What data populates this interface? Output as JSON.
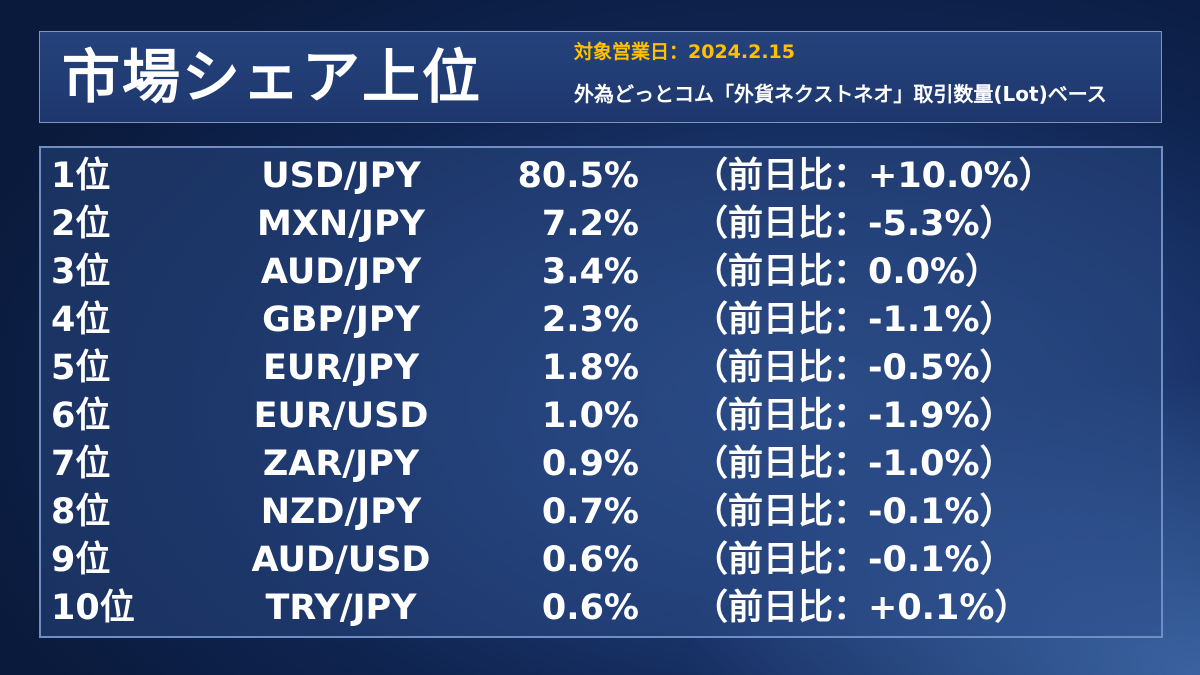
{
  "header": {
    "title": "市場シェア上位",
    "date_line": "対象営業日：2024.2.15",
    "basis_line": "外為どっとコム「外貨ネクストネオ」取引数量(Lot)ベース"
  },
  "ranking": [
    {
      "rank": "1位",
      "pair": "USD/JPY",
      "share": "80.5%",
      "change": "（前日比：+10.0%）"
    },
    {
      "rank": "2位",
      "pair": "MXN/JPY",
      "share": "7.2%",
      "change": "（前日比：-5.3%）"
    },
    {
      "rank": "3位",
      "pair": "AUD/JPY",
      "share": "3.4%",
      "change": "（前日比：0.0%）"
    },
    {
      "rank": "4位",
      "pair": "GBP/JPY",
      "share": "2.3%",
      "change": "（前日比：-1.1%）"
    },
    {
      "rank": "5位",
      "pair": "EUR/JPY",
      "share": "1.8%",
      "change": "（前日比：-0.5%）"
    },
    {
      "rank": "6位",
      "pair": "EUR/USD",
      "share": "1.0%",
      "change": "（前日比：-1.9%）"
    },
    {
      "rank": "7位",
      "pair": "ZAR/JPY",
      "share": "0.9%",
      "change": "（前日比：-1.0%）"
    },
    {
      "rank": "8位",
      "pair": "NZD/JPY",
      "share": "0.7%",
      "change": "（前日比：-0.1%）"
    },
    {
      "rank": "9位",
      "pair": "AUD/USD",
      "share": "0.6%",
      "change": "（前日比：-0.1%）"
    },
    {
      "rank": "10位",
      "pair": "TRY/JPY",
      "share": "0.6%",
      "change": "（前日比：+0.1%）"
    }
  ],
  "colors": {
    "accent_date": "#ffc000",
    "text": "#ffffff",
    "panel_border": "#6f8ec4"
  }
}
